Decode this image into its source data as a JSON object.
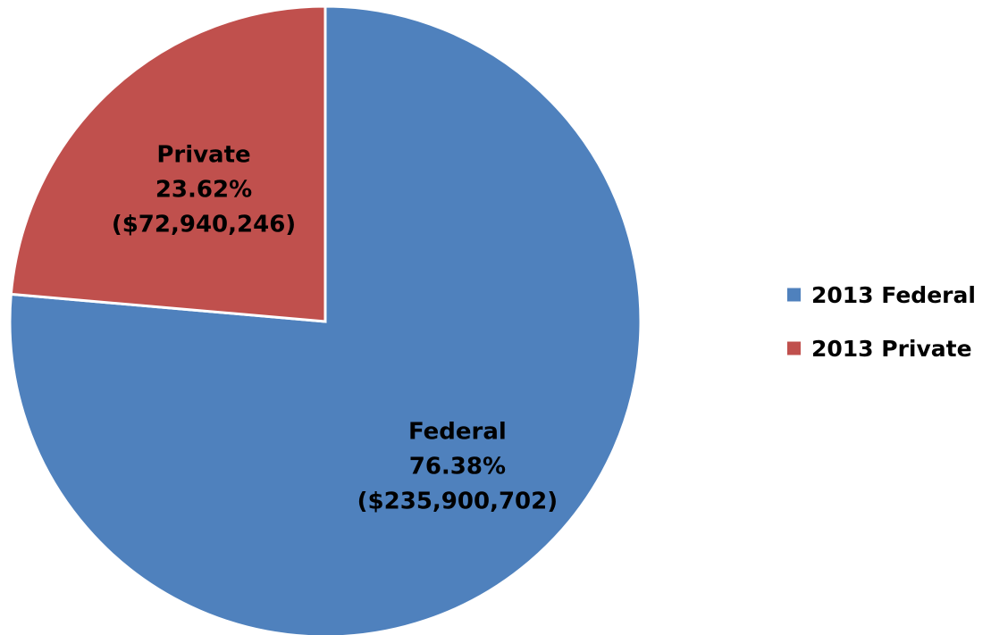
{
  "chart_data": {
    "type": "pie",
    "slices": [
      {
        "key": "federal",
        "label": "Federal",
        "percent_label": "76.38%",
        "amount_label": "($235,900,702)",
        "value": 235900702,
        "percent": 76.38,
        "color": "#4F81BD"
      },
      {
        "key": "private",
        "label": "Private",
        "percent_label": "23.62%",
        "amount_label": "($72,940,246)",
        "value": 72940246,
        "percent": 23.62,
        "color": "#C0504D"
      }
    ],
    "legend": {
      "position": "right",
      "items": [
        {
          "label": "2013 Federal",
          "color": "#4F81BD"
        },
        {
          "label": "2013 Private",
          "color": "#C0504D"
        }
      ]
    },
    "start_angle": "12 o'clock",
    "direction": "clockwise"
  }
}
